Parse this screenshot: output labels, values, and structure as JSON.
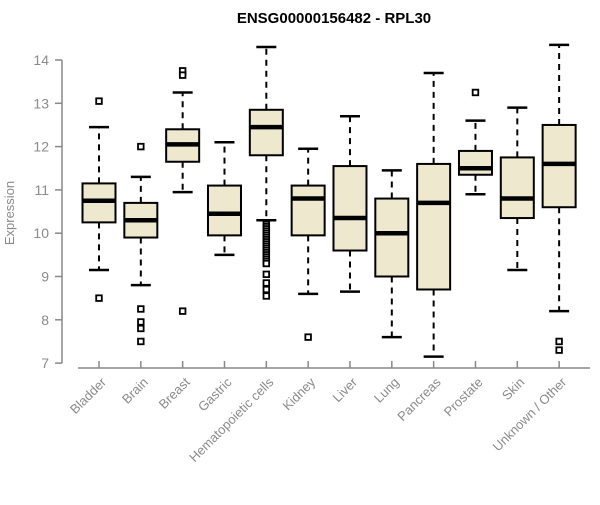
{
  "page": {
    "background": "#ffffff"
  },
  "colors": {
    "box_fill": "#ede8ce",
    "box_stroke": "#000000",
    "median_color": "#000000",
    "whisker_color": "#000000",
    "outlier_color": "#000000",
    "axis_color": "#888888",
    "tick_label_color": "#8a8a8a",
    "title_color": "#000000"
  },
  "chart_data": {
    "type": "boxplot",
    "title": "ENSG00000156482 - RPL30",
    "xlabel": "",
    "ylabel": "Expression",
    "ylim": [
      7,
      14
    ],
    "yticks": [
      7,
      8,
      9,
      10,
      11,
      12,
      13,
      14
    ],
    "grid": false,
    "legend": false,
    "categories": [
      "Bladder",
      "Brain",
      "Breast",
      "Gastric",
      "Hematopoietic cells",
      "Kidney",
      "Liver",
      "Lung",
      "Pancreas",
      "Prostate",
      "Skin",
      "Unknown / Other"
    ],
    "boxes": [
      {
        "category": "Bladder",
        "whisker_low": 9.15,
        "q1": 10.25,
        "median": 10.75,
        "q3": 11.15,
        "whisker_high": 12.45,
        "outliers": [
          13.05,
          8.5
        ]
      },
      {
        "category": "Brain",
        "whisker_low": 8.8,
        "q1": 9.9,
        "median": 10.3,
        "q3": 10.7,
        "whisker_high": 11.3,
        "outliers": [
          12.0,
          8.25,
          7.95,
          7.8,
          7.5
        ]
      },
      {
        "category": "Breast",
        "whisker_low": 10.95,
        "q1": 11.65,
        "median": 12.05,
        "q3": 12.4,
        "whisker_high": 13.25,
        "outliers": [
          13.75,
          13.65,
          8.2
        ]
      },
      {
        "category": "Gastric",
        "whisker_low": 9.5,
        "q1": 9.95,
        "median": 10.45,
        "q3": 11.1,
        "whisker_high": 12.1,
        "outliers": []
      },
      {
        "category": "Hematopoietic cells",
        "whisker_low": 10.3,
        "q1": 11.8,
        "median": 12.45,
        "q3": 12.85,
        "whisker_high": 14.3,
        "outliers": [
          10.2,
          10.15,
          10.1,
          10.05,
          10.0,
          9.95,
          9.9,
          9.85,
          9.8,
          9.75,
          9.7,
          9.65,
          9.6,
          9.55,
          9.5,
          9.45,
          9.4,
          9.35,
          9.3,
          9.05,
          8.85,
          8.7,
          8.55
        ]
      },
      {
        "category": "Kidney",
        "whisker_low": 8.6,
        "q1": 9.95,
        "median": 10.8,
        "q3": 11.1,
        "whisker_high": 11.95,
        "outliers": [
          7.6
        ]
      },
      {
        "category": "Liver",
        "whisker_low": 8.65,
        "q1": 9.6,
        "median": 10.35,
        "q3": 11.55,
        "whisker_high": 12.7,
        "outliers": []
      },
      {
        "category": "Lung",
        "whisker_low": 7.6,
        "q1": 9.0,
        "median": 10.0,
        "q3": 10.8,
        "whisker_high": 11.45,
        "outliers": []
      },
      {
        "category": "Pancreas",
        "whisker_low": 7.15,
        "q1": 8.7,
        "median": 10.7,
        "q3": 11.6,
        "whisker_high": 13.7,
        "outliers": []
      },
      {
        "category": "Prostate",
        "whisker_low": 10.9,
        "q1": 11.35,
        "median": 11.5,
        "q3": 11.9,
        "whisker_high": 12.6,
        "outliers": [
          13.25
        ]
      },
      {
        "category": "Skin",
        "whisker_low": 9.15,
        "q1": 10.35,
        "median": 10.8,
        "q3": 11.75,
        "whisker_high": 12.9,
        "outliers": []
      },
      {
        "category": "Unknown / Other",
        "whisker_low": 8.2,
        "q1": 10.6,
        "median": 11.6,
        "q3": 12.5,
        "whisker_high": 14.35,
        "outliers": [
          7.5,
          7.3
        ]
      }
    ]
  }
}
